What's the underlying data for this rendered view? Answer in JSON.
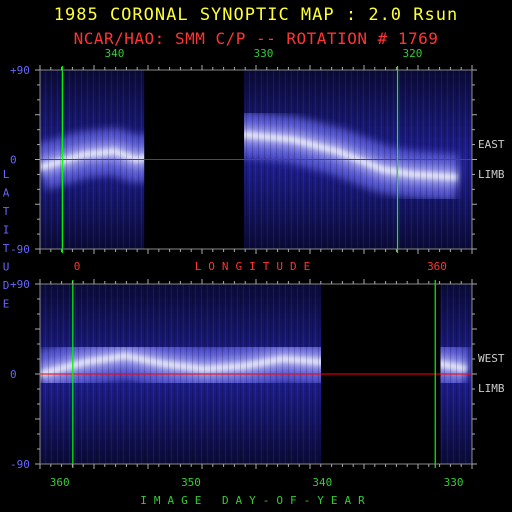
{
  "header": {
    "title": "1985 CORONAL SYNOPTIC MAP : 2.0 Rsun",
    "subtitle": "NCAR/HAO: SMM C/P -- ROTATION # 1769"
  },
  "colors": {
    "title": "#ffff33",
    "subtitle": "#ff3333",
    "top_axis_labels": "#33cc33",
    "lat_labels": "#6666ff",
    "side_labels": "#cccccc",
    "meridian_lines": "#00ff00",
    "equator_line": "#ff0000",
    "corona": "#3333cc",
    "corona_bright": "#ffffff"
  },
  "chart_data": [
    {
      "type": "heatmap",
      "name": "east-limb-map",
      "side_label": [
        "EAST",
        "LIMB"
      ],
      "top_ticks": [
        {
          "value": "340",
          "pos": 340
        },
        {
          "value": "330",
          "pos": 330
        },
        {
          "value": "320",
          "pos": 320
        }
      ],
      "bottom_ticks": [
        {
          "value": "0",
          "pos": 0
        },
        {
          "value": "360",
          "pos": 360
        }
      ],
      "axis_label_bottom": "LONGITUDE",
      "x_range": [
        345,
        316
      ],
      "ylim": [
        -90,
        90
      ],
      "y_ticks": [
        "+90",
        "0",
        "-90"
      ],
      "equator": 0,
      "meridians": [
        343.5,
        321.0
      ],
      "data_gaps": [
        [
          338.0,
          331.3
        ]
      ],
      "bright_band_lat": [
        {
          "lon": 345,
          "lat": -8
        },
        {
          "lon": 342,
          "lat": 5
        },
        {
          "lon": 340,
          "lat": 8
        },
        {
          "lon": 338.5,
          "lat": 0
        },
        {
          "lon": 331.3,
          "lat": 25
        },
        {
          "lon": 328,
          "lat": 20
        },
        {
          "lon": 325,
          "lat": 8
        },
        {
          "lon": 322,
          "lat": -10
        },
        {
          "lon": 320,
          "lat": -15
        },
        {
          "lon": 317,
          "lat": -18
        }
      ]
    },
    {
      "type": "heatmap",
      "name": "west-limb-map",
      "side_label": [
        "WEST",
        "LIMB"
      ],
      "bottom_ticks": [
        {
          "value": "360",
          "pos": 360
        },
        {
          "value": "350",
          "pos": 350
        },
        {
          "value": "340",
          "pos": 340
        },
        {
          "value": "330",
          "pos": 330
        }
      ],
      "axis_label_bottom": "IMAGE DAY-OF-YEAR",
      "x_range": [
        361.5,
        328.6
      ],
      "ylim": [
        -90,
        90
      ],
      "y_ticks": [
        "+90",
        "0",
        "-90"
      ],
      "equator": 0,
      "meridians": [
        359.0,
        331.4
      ],
      "data_gaps": [
        [
          340.1,
          331.0
        ]
      ],
      "bright_band_lat": [
        {
          "lon": 361.5,
          "lat": 0
        },
        {
          "lon": 358,
          "lat": 12
        },
        {
          "lon": 355,
          "lat": 18
        },
        {
          "lon": 352,
          "lat": 10
        },
        {
          "lon": 349,
          "lat": 5
        },
        {
          "lon": 346,
          "lat": 8
        },
        {
          "lon": 343,
          "lat": 15
        },
        {
          "lon": 340.1,
          "lat": 12
        },
        {
          "lon": 331,
          "lat": 10
        },
        {
          "lon": 329,
          "lat": 5
        }
      ]
    }
  ],
  "lat_axis_label": "LATITUDE"
}
